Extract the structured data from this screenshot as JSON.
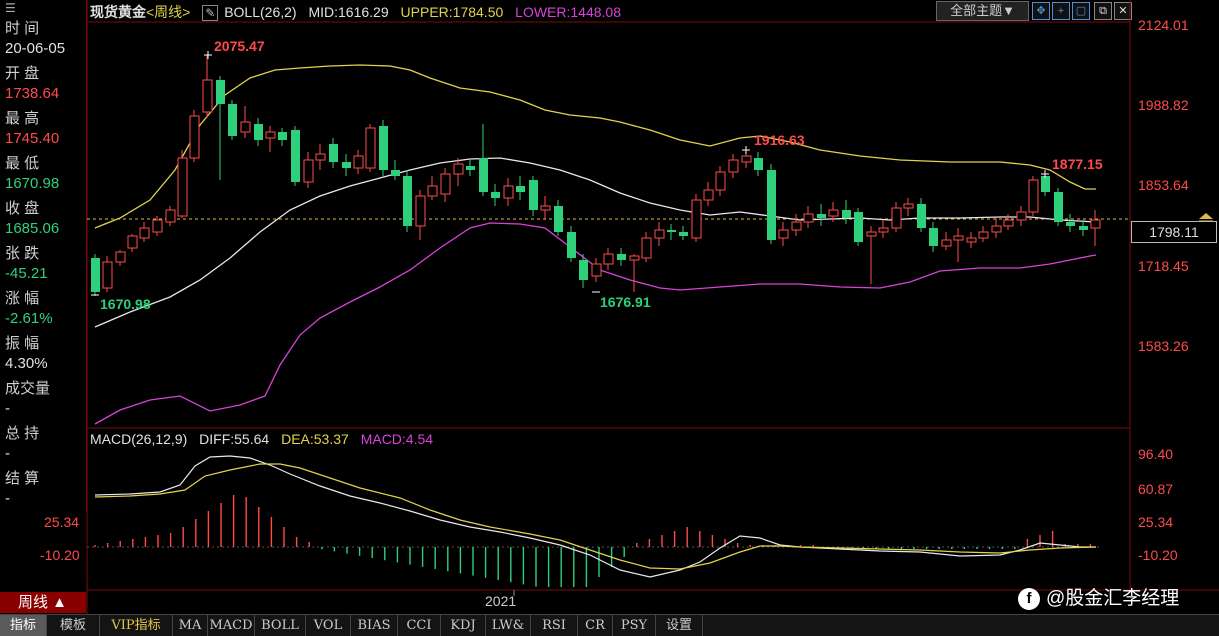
{
  "info_panel": {
    "menu_icon": "menu-icon",
    "items": [
      {
        "label": "时 间",
        "value": "20-06-05",
        "value_color": "#e0e0e0"
      },
      {
        "label": "开 盘",
        "value": "1738.64",
        "value_color": "#ff4b4b"
      },
      {
        "label": "最 高",
        "value": "1745.40",
        "value_color": "#ff4b4b"
      },
      {
        "label": "最 低",
        "value": "1670.98",
        "value_color": "#2fd07c"
      },
      {
        "label": "收 盘",
        "value": "1685.06",
        "value_color": "#2fd07c"
      },
      {
        "label": "张 跌",
        "value": "-45.21",
        "value_color": "#2fd07c"
      },
      {
        "label": "涨 幅",
        "value": "-2.61%",
        "value_color": "#2fd07c"
      },
      {
        "label": "振 幅",
        "value": "4.30%",
        "value_color": "#e0e0e0"
      },
      {
        "label": "成交量",
        "value": "-",
        "value_color": "#e0e0e0"
      },
      {
        "label": "总 持",
        "value": "-",
        "value_color": "#e0e0e0"
      },
      {
        "label": "结 算",
        "value": "-",
        "value_color": "#e0e0e0"
      }
    ]
  },
  "header": {
    "instrument": "现货黄金",
    "period": "<周线>",
    "indicator": "BOLL(26,2)",
    "mid": "MID:1616.29",
    "upper": "UPPER:1784.50",
    "lower": "LOWER:1448.08"
  },
  "toolbar": {
    "theme_label": "全部主题▼",
    "buttons": [
      "move-icon",
      "zoom-in-icon",
      "fullscreen-icon",
      "restore-icon",
      "close-icon"
    ]
  },
  "price_axis": [
    "2124.01",
    "1988.82",
    "1853.64",
    "1718.45",
    "1583.26"
  ],
  "current_price": "1798.11",
  "annotations": {
    "high": "2075.47",
    "low_left": "1670.98",
    "low_mid": "1676.91",
    "peak_mid": "1916.63",
    "peak_right": "1877.15"
  },
  "macd_header": {
    "name": "MACD(26,12,9)",
    "diff": "DIFF:55.64",
    "dea": "DEA:53.37",
    "macd": "MACD:4.54"
  },
  "macd_axis_right": [
    "96.40",
    "60.87",
    "25.34",
    "-10.20"
  ],
  "macd_axis_left": [
    "25.34",
    "-10.20"
  ],
  "x_axis_label": "2021",
  "period_button": "周线 ▲",
  "tabs": [
    "指标",
    "模板",
    "VIP指标",
    "MA",
    "MACD",
    "BOLL",
    "VOL",
    "BIAS",
    "CCI",
    "KDJ",
    "LW&",
    "RSI",
    "CR",
    "PSY",
    "设置"
  ],
  "watermark": "@股金汇李经理",
  "colors": {
    "up": "#ff4b4b",
    "down": "#2fd07c",
    "upper": "#e2d34a",
    "mid": "#e8e8e8",
    "lower": "#d843d8"
  }
}
